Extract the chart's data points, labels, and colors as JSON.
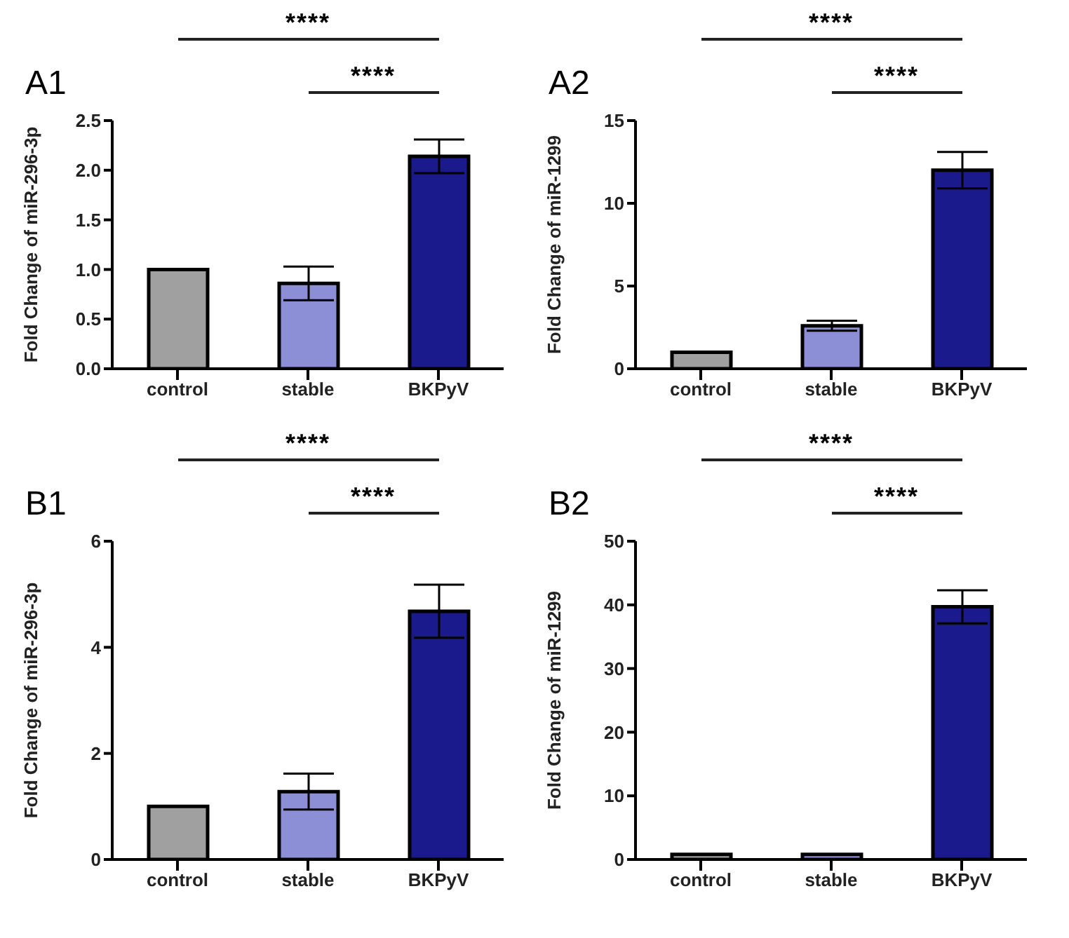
{
  "chart_data": [
    {
      "type": "bar",
      "title": "A1",
      "categories": [
        "control",
        "stable",
        "BKPyV"
      ],
      "values": [
        1.0,
        0.86,
        2.14
      ],
      "errors": [
        null,
        0.17,
        0.17
      ],
      "colors": [
        "#a0a0a0",
        "#8c8fd6",
        "#1a1a8c"
      ],
      "ylabel": "Fold Change of miR-296-3p",
      "ylim": [
        0,
        2.5
      ],
      "yticks": [
        {
          "value": 0,
          "label": "0.0"
        },
        {
          "value": 0.5,
          "label": "0.5"
        },
        {
          "value": 1,
          "label": "1.0"
        },
        {
          "value": 1.5,
          "label": "1.5"
        },
        {
          "value": 2,
          "label": "2.0"
        },
        {
          "value": 2.5,
          "label": "2.5"
        }
      ],
      "annotations": [
        "****",
        "****"
      ]
    },
    {
      "type": "bar",
      "title": "A2",
      "categories": [
        "control",
        "stable",
        "BKPyV"
      ],
      "values": [
        1.0,
        2.6,
        12.0
      ],
      "errors": [
        null,
        0.3,
        1.1
      ],
      "colors": [
        "#a0a0a0",
        "#8c8fd6",
        "#1a1a8c"
      ],
      "ylabel": "Fold Change of miR-1299",
      "ylim": [
        0,
        15
      ],
      "yticks": [
        0,
        5,
        10,
        15
      ],
      "annotations": [
        "****",
        "****"
      ]
    },
    {
      "type": "bar",
      "title": "B1",
      "categories": [
        "control",
        "stable",
        "BKPyV"
      ],
      "values": [
        1.0,
        1.28,
        4.68
      ],
      "errors": [
        null,
        0.34,
        0.5
      ],
      "colors": [
        "#a0a0a0",
        "#8c8fd6",
        "#1a1a8c"
      ],
      "ylabel": "Fold Change of miR-296-3p",
      "ylim": [
        0,
        6
      ],
      "yticks": [
        0,
        2,
        4,
        6
      ],
      "annotations": [
        "****",
        "****"
      ]
    },
    {
      "type": "bar",
      "title": "B2",
      "categories": [
        "control",
        "stable",
        "BKPyV"
      ],
      "values": [
        0.8,
        0.8,
        39.7
      ],
      "errors": [
        null,
        null,
        2.6
      ],
      "colors": [
        "#a0a0a0",
        "#8c8fd6",
        "#1a1a8c"
      ],
      "ylabel": "Fold Change of miR-1299",
      "ylim": [
        0,
        50
      ],
      "yticks": [
        0,
        10,
        20,
        30,
        40,
        50
      ],
      "annotations": [
        "****",
        "****"
      ]
    }
  ]
}
